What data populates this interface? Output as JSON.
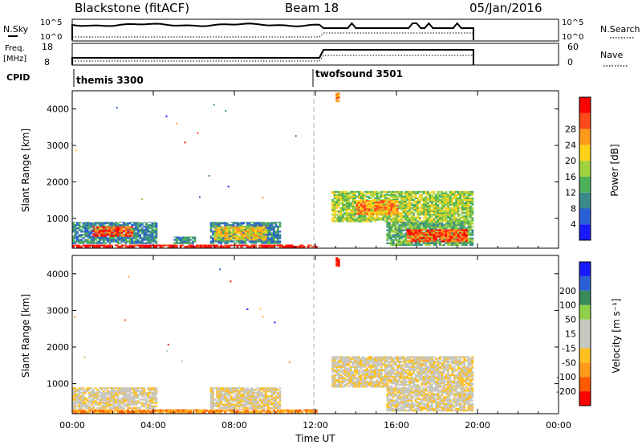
{
  "header": {
    "station": "Blackstone (fitACF)",
    "beam": "Beam 18",
    "date": "05/Jan/2016"
  },
  "summary_panels": {
    "nsky_label": "N.Sky",
    "nsky_ticks": [
      "10^5",
      "10^0"
    ],
    "nsearch_label": "N.Search",
    "nsearch_ticks": [
      "10^5",
      "10^0"
    ],
    "freq_label": "Freq.",
    "freq_unit": "[MHz]",
    "freq_ticks": [
      "18",
      "8"
    ],
    "nave_label": "Nave",
    "nave_ticks": [
      "60",
      "0"
    ],
    "cpid_label": "CPID",
    "cpid_segments": [
      {
        "name": "themis 3300",
        "start_hour": 0.0,
        "end_hour": 12.0
      },
      {
        "name": "twofsound 3501",
        "start_hour": 12.0,
        "end_hour": 19.8
      }
    ]
  },
  "colors": {
    "power_scale": [
      "#1a1aff",
      "#2a5fd6",
      "#3b8a8a",
      "#4fb05a",
      "#9fd23c",
      "#ffd21a",
      "#ff9a1a",
      "#ff4a1a",
      "#ff0000"
    ],
    "velocity_scale": [
      "#ff0000",
      "#ff5a00",
      "#ff9a1a",
      "#ffc020",
      "#c8c8c0",
      "#c8c8c0",
      "#8fd24a",
      "#3b8a5a",
      "#2a5fd6",
      "#1a1aff"
    ]
  },
  "chart_data": [
    {
      "type": "heatmap",
      "title": "Power",
      "xlabel": "Time UT",
      "ylabel": "Slant Range [km]",
      "x_ticks": [
        "00:00",
        "04:00",
        "08:00",
        "12:00",
        "16:00",
        "20:00",
        "00:00"
      ],
      "xlim_hours": [
        0,
        24
      ],
      "ylim": [
        180,
        4500
      ],
      "y_ticks": [
        1000,
        2000,
        3000,
        4000
      ],
      "colorbar": {
        "label": "Power [dB]",
        "ticks": [
          4,
          8,
          12,
          16,
          20,
          24,
          28
        ]
      },
      "regions": [
        {
          "t0": 0.0,
          "t1": 12.0,
          "r0": 200,
          "r1": 280,
          "level": 8
        },
        {
          "t0": 0.0,
          "t1": 4.2,
          "r0": 300,
          "r1": 900,
          "level": 2
        },
        {
          "t0": 1.0,
          "t1": 3.0,
          "r0": 500,
          "r1": 780,
          "level": 7
        },
        {
          "t0": 5.0,
          "t1": 6.0,
          "r0": 300,
          "r1": 500,
          "level": 2
        },
        {
          "t0": 6.8,
          "t1": 10.2,
          "r0": 300,
          "r1": 900,
          "level": 2
        },
        {
          "t0": 7.0,
          "t1": 9.5,
          "r0": 400,
          "r1": 780,
          "level": 5
        },
        {
          "t0": 12.8,
          "t1": 19.8,
          "r0": 900,
          "r1": 1750,
          "level": 4
        },
        {
          "t0": 14.0,
          "t1": 16.0,
          "r0": 1100,
          "r1": 1500,
          "level": 6
        },
        {
          "t0": 15.5,
          "t1": 19.8,
          "r0": 250,
          "r1": 900,
          "level": 3
        },
        {
          "t0": 16.5,
          "t1": 19.5,
          "r0": 350,
          "r1": 700,
          "level": 7
        },
        {
          "t0": 13.0,
          "t1": 13.2,
          "r0": 4200,
          "r1": 4450,
          "level": 6
        }
      ]
    },
    {
      "type": "heatmap",
      "title": "Velocity",
      "xlabel": "Time UT",
      "ylabel": "Slant Range [km]",
      "x_ticks": [
        "00:00",
        "04:00",
        "08:00",
        "12:00",
        "16:00",
        "20:00",
        "00:00"
      ],
      "xlim_hours": [
        0,
        24
      ],
      "ylim": [
        180,
        4500
      ],
      "y_ticks": [
        1000,
        2000,
        3000,
        4000
      ],
      "colorbar": {
        "label": "Velocity [m s⁻¹]",
        "ticks": [
          -200,
          -100,
          -50,
          -15,
          15,
          50,
          100,
          200
        ]
      },
      "regions": [
        {
          "t0": 0.0,
          "t1": 12.0,
          "r0": 200,
          "r1": 300,
          "level": 2
        },
        {
          "t0": 0.0,
          "t1": 4.2,
          "r0": 320,
          "r1": 900,
          "level": 4
        },
        {
          "t0": 6.8,
          "t1": 10.2,
          "r0": 320,
          "r1": 900,
          "level": 4
        },
        {
          "t0": 12.8,
          "t1": 19.8,
          "r0": 900,
          "r1": 1750,
          "level": 4
        },
        {
          "t0": 15.5,
          "t1": 19.8,
          "r0": 250,
          "r1": 900,
          "level": 4
        },
        {
          "t0": 13.0,
          "t1": 13.2,
          "r0": 4200,
          "r1": 4450,
          "level": 0
        }
      ]
    }
  ]
}
